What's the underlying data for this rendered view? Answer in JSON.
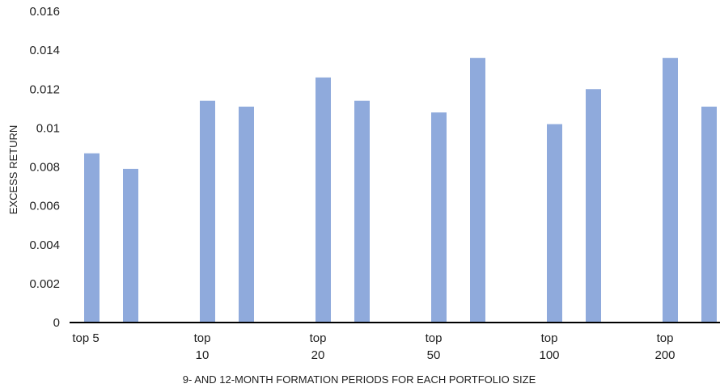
{
  "chart_data": {
    "type": "bar",
    "title": "",
    "xlabel": "9- AND 12-MONTH FORMATION PERIODS FOR EACH PORTFOLIO SIZE",
    "ylabel": "EXCESS RETURN",
    "ylim": [
      0,
      0.016
    ],
    "yticks": [
      "0",
      "0.002",
      "0.004",
      "0.006",
      "0.008",
      "0.01",
      "0.012",
      "0.014",
      "0.016"
    ],
    "grid": false,
    "legend": "none",
    "bar_color": "#8faadc",
    "groups": [
      {
        "label": [
          "top 5"
        ],
        "values": [
          0.0087,
          0.0079
        ]
      },
      {
        "label": [
          "top",
          "10"
        ],
        "values": [
          0.0114,
          0.0111
        ]
      },
      {
        "label": [
          "top",
          "20"
        ],
        "values": [
          0.0126,
          0.0114
        ]
      },
      {
        "label": [
          "top",
          "50"
        ],
        "values": [
          0.0108,
          0.0136
        ]
      },
      {
        "label": [
          "top",
          "100"
        ],
        "values": [
          0.0102,
          0.012
        ]
      },
      {
        "label": [
          "top",
          "200"
        ],
        "values": [
          0.0136,
          0.0111
        ]
      }
    ]
  }
}
